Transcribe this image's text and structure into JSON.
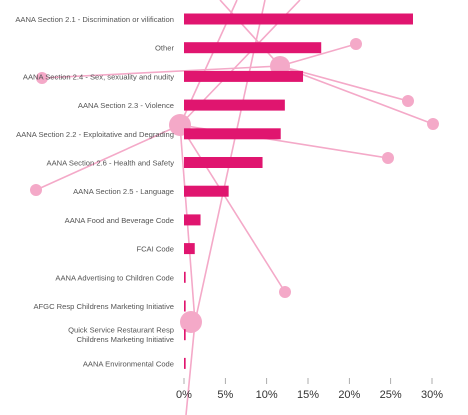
{
  "chart_data": {
    "type": "bar",
    "orientation": "horizontal",
    "categories": [
      "AANA Section 2.1 - Discrimination or vilification",
      "Other",
      "AANA Section 2.4 - Sex, sexuality and nudity",
      "AANA Section 2.3 - Violence",
      "AANA Section 2.2 - Exploitative and Degrading",
      "AANA Section 2.6 - Health and Safety",
      "AANA Section 2.5 - Language",
      "AANA Food and Beverage Code",
      "FCAI Code",
      "AANA Advertising to Children Code",
      "AFGC Resp Childrens Marketing Initiative",
      "Quick Service Restaurant Resp Childrens Marketing Initiative",
      "AANA Environmental Code"
    ],
    "values": [
      27.7,
      16.6,
      14.4,
      12.2,
      11.7,
      9.5,
      5.4,
      2.0,
      1.3,
      0.2,
      0.2,
      0.2,
      0.2
    ],
    "xlim": [
      0,
      30
    ],
    "xticks": [
      "0%",
      "5%",
      "10%",
      "15%",
      "20%",
      "25%",
      "30%"
    ],
    "title": "",
    "xlabel": "",
    "ylabel": "",
    "grid": false,
    "colors": {
      "bar": "#e0156f",
      "decoration": "#f4a9c8"
    }
  }
}
